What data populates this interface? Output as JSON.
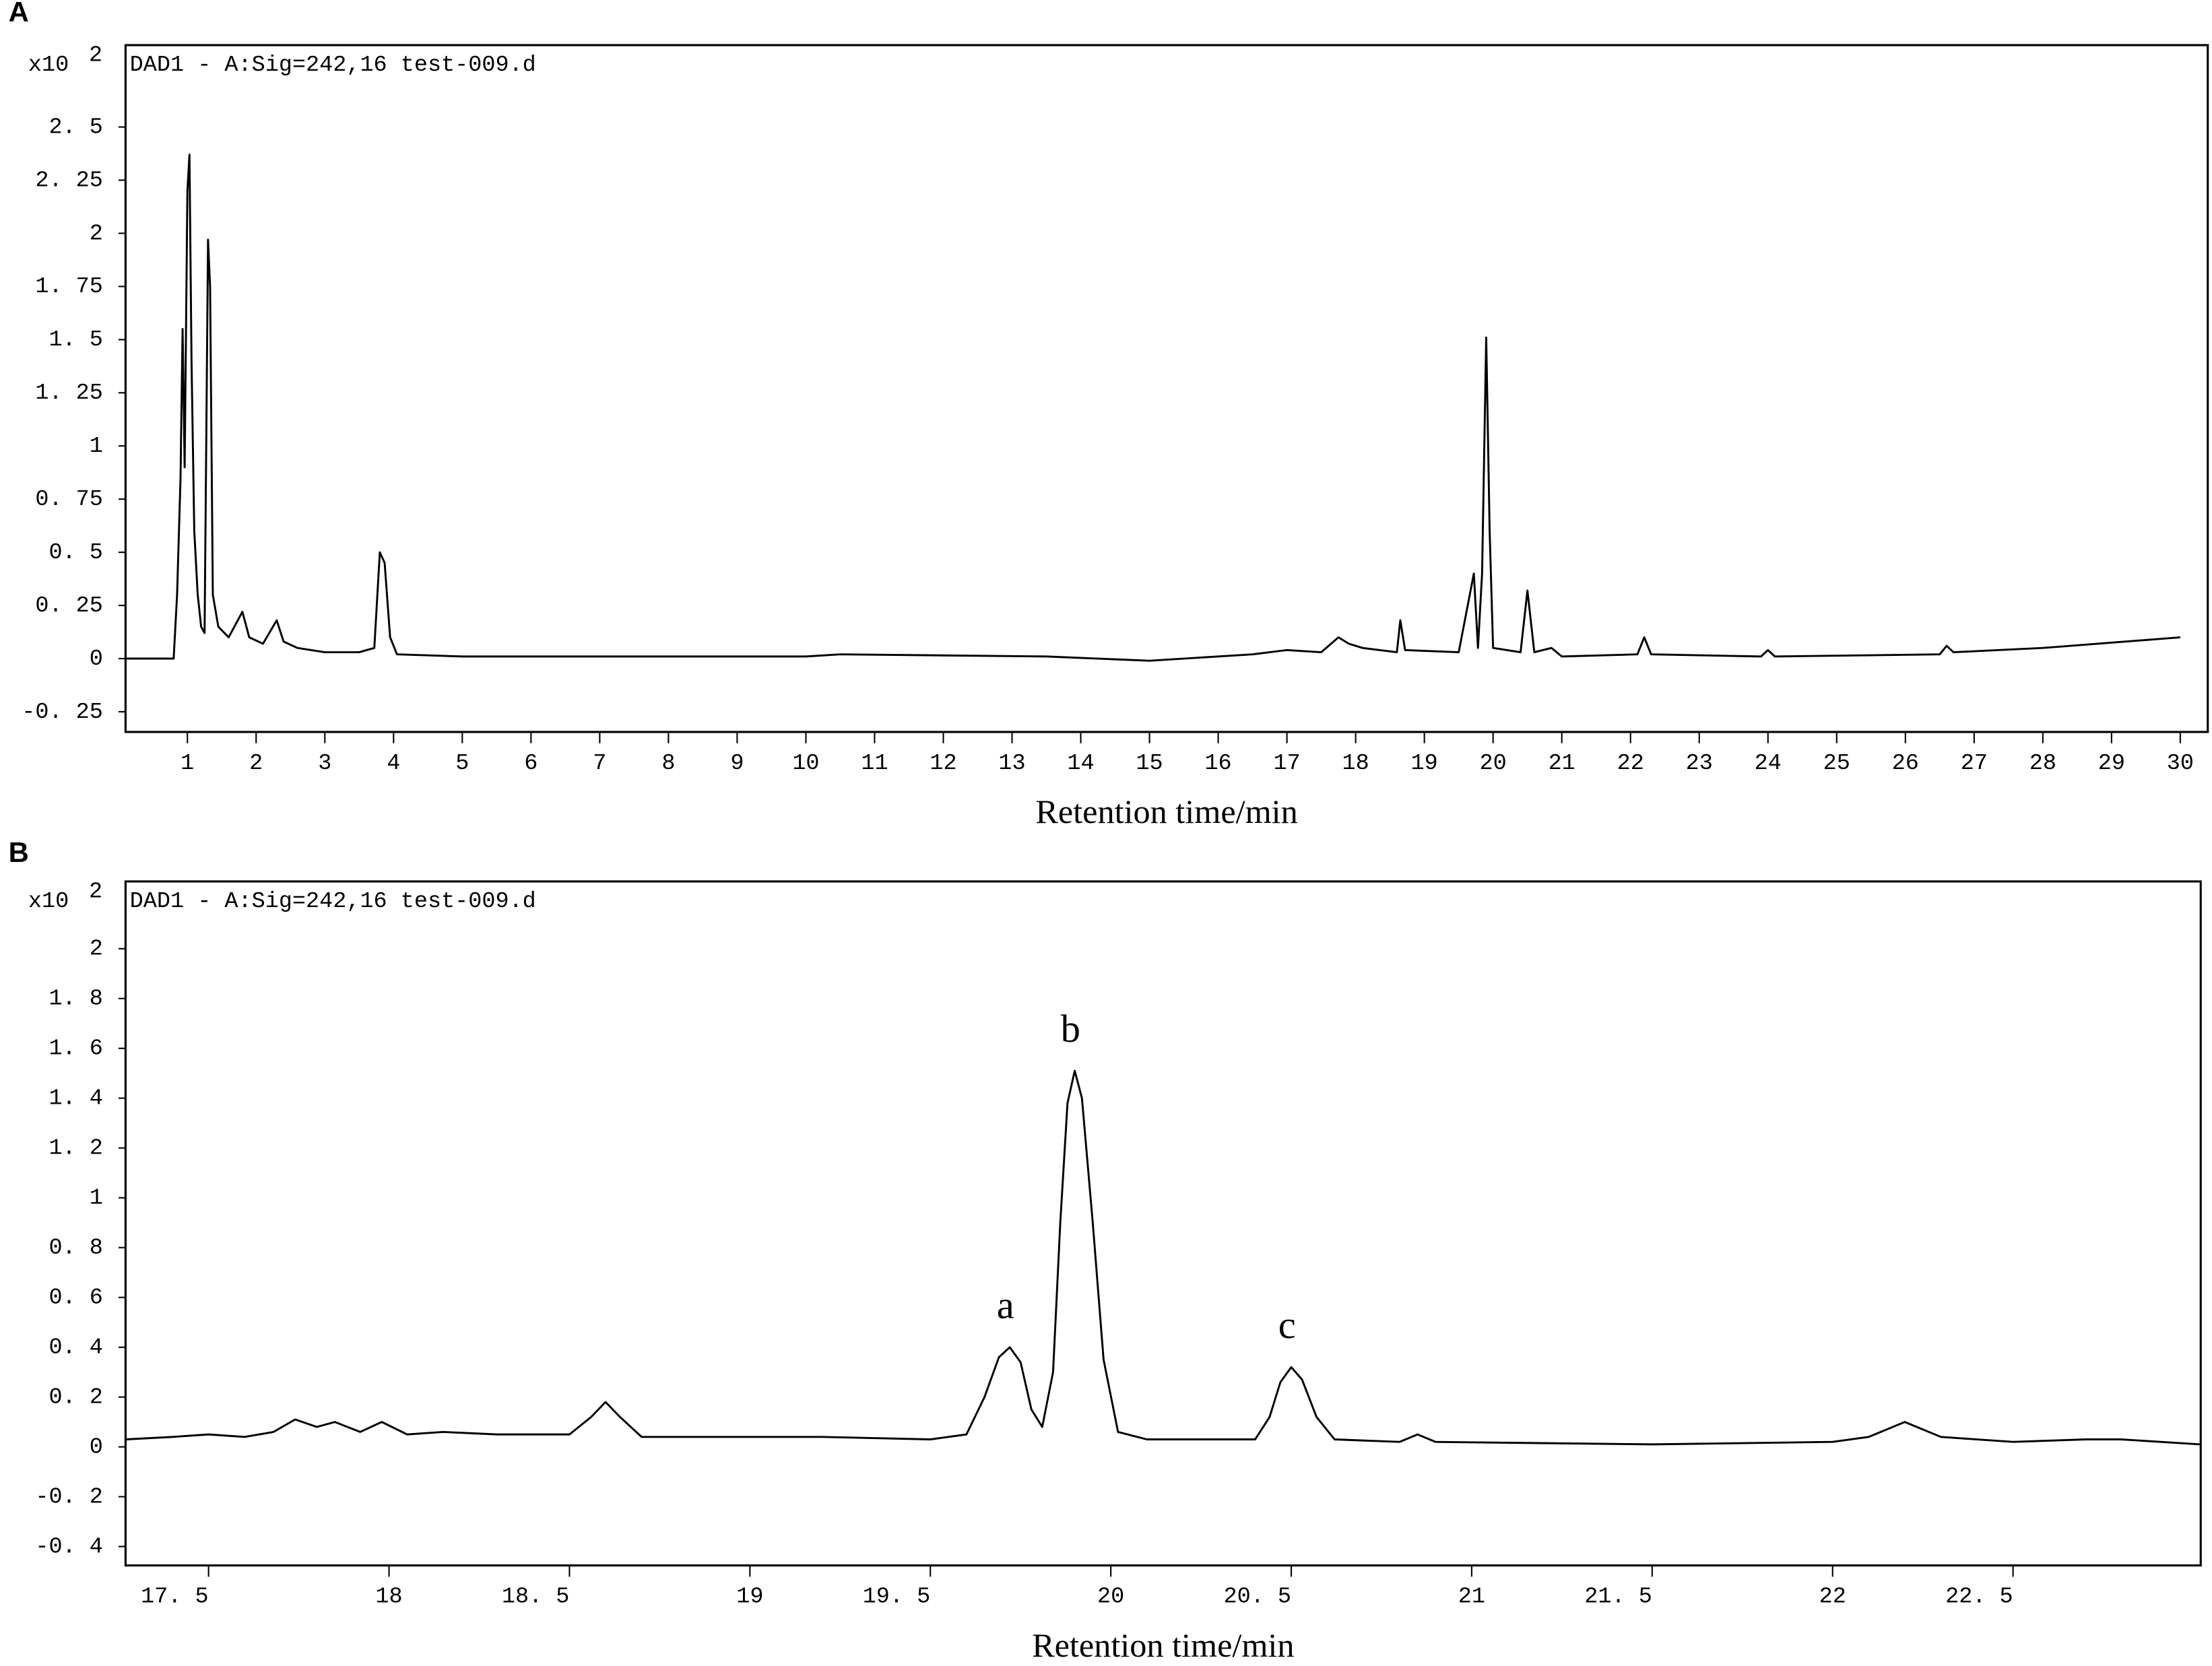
{
  "chart_data": [
    {
      "type": "line",
      "panel_label": "A",
      "y_unit": "x10",
      "y_unit_exponent": "2",
      "x_label": "Retention time/min",
      "x": [
        0.1,
        0.8,
        0.85,
        0.9,
        0.93,
        0.96,
        1.0,
        1.03,
        1.06,
        1.1,
        1.15,
        1.2,
        1.25,
        1.3,
        1.33,
        1.37,
        1.45,
        1.6,
        1.8,
        1.9,
        2.1,
        2.3,
        2.4,
        2.6,
        3.0,
        3.5,
        3.72,
        3.8,
        3.87,
        3.95,
        4.05,
        5,
        10,
        10.5,
        13.5,
        15,
        16.5,
        17,
        17.5,
        17.75,
        17.9,
        18.1,
        18.6,
        18.65,
        18.72,
        19.5,
        19.72,
        19.78,
        19.84,
        19.9,
        19.95,
        20.0,
        20.4,
        20.5,
        20.6,
        20.85,
        21,
        22.1,
        22.2,
        22.3,
        23.9,
        24,
        24.1,
        26.5,
        26.6,
        26.7,
        28,
        30
      ],
      "series": [
        {
          "name": "DAD1 - A:Sig=242,16 test-009.d",
          "color": "#000000",
          "values": [
            0,
            0,
            0.3,
            0.85,
            1.55,
            0.9,
            2.2,
            2.37,
            1.4,
            0.6,
            0.3,
            0.15,
            0.12,
            1.97,
            1.75,
            0.3,
            0.15,
            0.1,
            0.22,
            0.1,
            0.07,
            0.18,
            0.08,
            0.05,
            0.03,
            0.03,
            0.05,
            0.5,
            0.45,
            0.1,
            0.02,
            0.01,
            0.01,
            0.02,
            0.01,
            -0.01,
            0.02,
            0.04,
            0.03,
            0.1,
            0.07,
            0.05,
            0.03,
            0.18,
            0.04,
            0.03,
            0.4,
            0.05,
            0.4,
            1.51,
            0.6,
            0.05,
            0.03,
            0.32,
            0.03,
            0.05,
            0.01,
            0.02,
            0.1,
            0.02,
            0.01,
            0.04,
            0.01,
            0.02,
            0.06,
            0.03,
            0.05,
            0.1
          ]
        }
      ],
      "xlim": [
        0.1,
        30.4
      ],
      "ylim": [
        -0.345,
        2.885
      ],
      "xticks": [
        1,
        2,
        3,
        4,
        5,
        6,
        7,
        8,
        9,
        10,
        11,
        12,
        13,
        14,
        15,
        16,
        17,
        18,
        19,
        20,
        21,
        22,
        23,
        24,
        25,
        26,
        27,
        28,
        29,
        30
      ],
      "yticks": [
        {
          "value": -0.25,
          "label": "-0. 25"
        },
        0,
        {
          "value": 0.25,
          "label": "0. 25"
        },
        {
          "value": 0.5,
          "label": "0. 5"
        },
        {
          "value": 0.75,
          "label": "0. 75"
        },
        1,
        {
          "value": 1.25,
          "label": "1. 25"
        },
        {
          "value": 1.5,
          "label": "1. 5"
        },
        {
          "value": 1.75,
          "label": "1. 75"
        },
        2,
        {
          "value": 2.25,
          "label": "2. 25"
        },
        {
          "value": 2.5,
          "label": "2. 5"
        }
      ]
    },
    {
      "type": "line",
      "panel_label": "B",
      "y_unit": "x10",
      "y_unit_exponent": "2",
      "x_label": "Retention time/min",
      "x": [
        17.27,
        17.4,
        17.5,
        17.6,
        17.68,
        17.74,
        17.8,
        17.85,
        17.92,
        17.98,
        18.05,
        18.15,
        18.3,
        18.5,
        18.56,
        18.6,
        18.64,
        18.7,
        18.9,
        19.2,
        19.5,
        19.6,
        19.65,
        19.69,
        19.72,
        19.75,
        19.78,
        19.81,
        19.84,
        19.86,
        19.88,
        19.9,
        19.92,
        19.95,
        19.98,
        20.02,
        20.1,
        20.4,
        20.44,
        20.47,
        20.5,
        20.53,
        20.57,
        20.62,
        20.8,
        20.85,
        20.9,
        21.5,
        22.0,
        22.1,
        22.2,
        22.3,
        22.5,
        22.7,
        22.8,
        23.02
      ],
      "series": [
        {
          "name": "DAD1 - A:Sig=242,16 test-009.d",
          "color": "#000000",
          "values": [
            0.03,
            0.04,
            0.05,
            0.04,
            0.06,
            0.11,
            0.08,
            0.1,
            0.06,
            0.1,
            0.05,
            0.06,
            0.05,
            0.05,
            0.12,
            0.18,
            0.12,
            0.04,
            0.04,
            0.04,
            0.03,
            0.05,
            0.2,
            0.36,
            0.4,
            0.34,
            0.15,
            0.08,
            0.3,
            0.9,
            1.38,
            1.51,
            1.4,
            0.9,
            0.35,
            0.06,
            0.03,
            0.03,
            0.12,
            0.26,
            0.32,
            0.27,
            0.12,
            0.03,
            0.02,
            0.05,
            0.02,
            0.01,
            0.02,
            0.04,
            0.1,
            0.04,
            0.02,
            0.03,
            0.03,
            0.01
          ]
        }
      ],
      "xlim": [
        17.27,
        23.02
      ],
      "ylim": [
        -0.476,
        2.27
      ],
      "xticks": [
        {
          "value": 17.5,
          "label": "17. 5"
        },
        18,
        {
          "value": 18.5,
          "label": "18. 5"
        },
        19,
        {
          "value": 19.5,
          "label": "19. 5"
        },
        20,
        {
          "value": 20.5,
          "label": "20. 5"
        },
        21,
        {
          "value": 21.5,
          "label": "21. 5"
        },
        22,
        {
          "value": 22.5,
          "label": "22. 5"
        }
      ],
      "yticks": [
        {
          "value": -0.4,
          "label": "-0. 4"
        },
        {
          "value": -0.2,
          "label": "-0. 2"
        },
        0,
        {
          "value": 0.2,
          "label": "0. 2"
        },
        {
          "value": 0.4,
          "label": "0. 4"
        },
        {
          "value": 0.6,
          "label": "0. 6"
        },
        {
          "value": 0.8,
          "label": "0. 8"
        },
        1,
        {
          "value": 1.2,
          "label": "1. 2"
        },
        {
          "value": 1.4,
          "label": "1. 4"
        },
        {
          "value": 1.6,
          "label": "1. 6"
        },
        {
          "value": 1.8,
          "label": "1. 8"
        },
        2
      ],
      "annotations": [
        {
          "text": "a",
          "x": 19.72,
          "y": 0.4
        },
        {
          "text": "b",
          "x": 19.9,
          "y": 1.51
        },
        {
          "text": "c",
          "x": 20.5,
          "y": 0.32
        }
      ]
    }
  ]
}
